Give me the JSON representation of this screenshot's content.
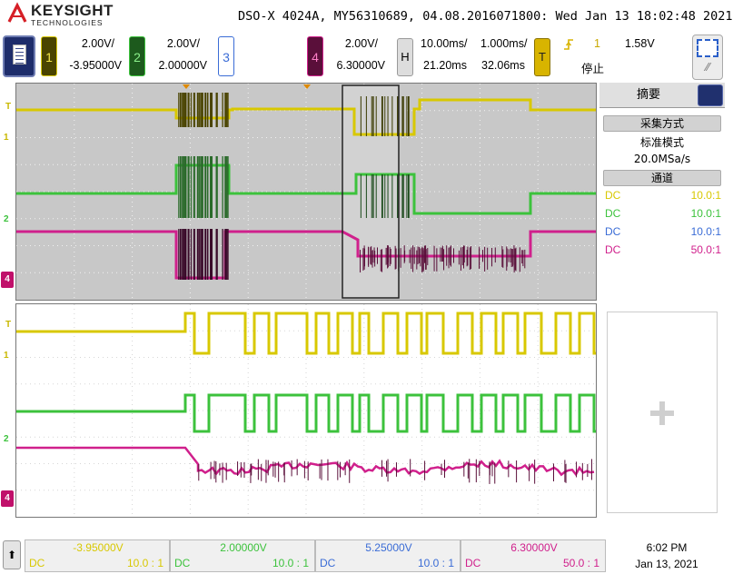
{
  "window": {
    "title": "DSO-X 4024A, MY56310689, 04.08.2016071800: Wed Jan 13 18:02:48 2021"
  },
  "brand": {
    "name": "KEYSIGHT",
    "sub": "TECHNOLOGIES"
  },
  "colors": {
    "ch1": "#d8c800",
    "ch2": "#3cc23c",
    "ch3": "#3a6cd6",
    "ch4": "#d0208c",
    "trigger": "#d8b400",
    "grid_bg": "#c8c8c8"
  },
  "channels": [
    {
      "num": "1",
      "scale": "2.00V/",
      "offset": "-3.95000V"
    },
    {
      "num": "2",
      "scale": "2.00V/",
      "offset": "2.00000V"
    },
    {
      "num": "3",
      "scale": "",
      "offset": ""
    },
    {
      "num": "4",
      "scale": "2.00V/",
      "offset": "6.30000V"
    }
  ],
  "horizontal": {
    "key": "H",
    "main_scale": "10.00ms/",
    "zoom_scale": "1.000ms/",
    "main_delay": "21.20ms",
    "zoom_delay": "32.06ms"
  },
  "trigger": {
    "key": "T",
    "source": "1",
    "level": "1.58V",
    "status": "停止",
    "slope_icon": "rising-edge-icon"
  },
  "sidebar": {
    "tab": "摘要",
    "acq_header": "采集方式",
    "acq_mode": "标准模式",
    "sample_rate": "20.0MSa/s",
    "chan_header": "通道",
    "rows": [
      {
        "coupling": "DC",
        "probe": "10.0:1",
        "color": "#d8c800"
      },
      {
        "coupling": "DC",
        "probe": "10.0:1",
        "color": "#3cc23c"
      },
      {
        "coupling": "DC",
        "probe": "10.0:1",
        "color": "#3a6cd6"
      },
      {
        "coupling": "DC",
        "probe": "50.0:1",
        "color": "#d0208c"
      }
    ]
  },
  "bottom": {
    "cells": [
      {
        "offset": "-3.95000V",
        "coupling": "DC",
        "probe": "10.0 : 1",
        "color": "#d8c800"
      },
      {
        "offset": "2.00000V",
        "coupling": "DC",
        "probe": "10.0 : 1",
        "color": "#3cc23c"
      },
      {
        "offset": "5.25000V",
        "coupling": "DC",
        "probe": "10.0 : 1",
        "color": "#3a6cd6"
      },
      {
        "offset": "6.30000V",
        "coupling": "DC",
        "probe": "50.0 : 1",
        "color": "#d0208c"
      }
    ],
    "time": "6:02 PM",
    "date": "Jan 13, 2021"
  },
  "markers": {
    "trigger_level": "T",
    "ch1": "1",
    "ch2": "2",
    "ch4": "4"
  }
}
